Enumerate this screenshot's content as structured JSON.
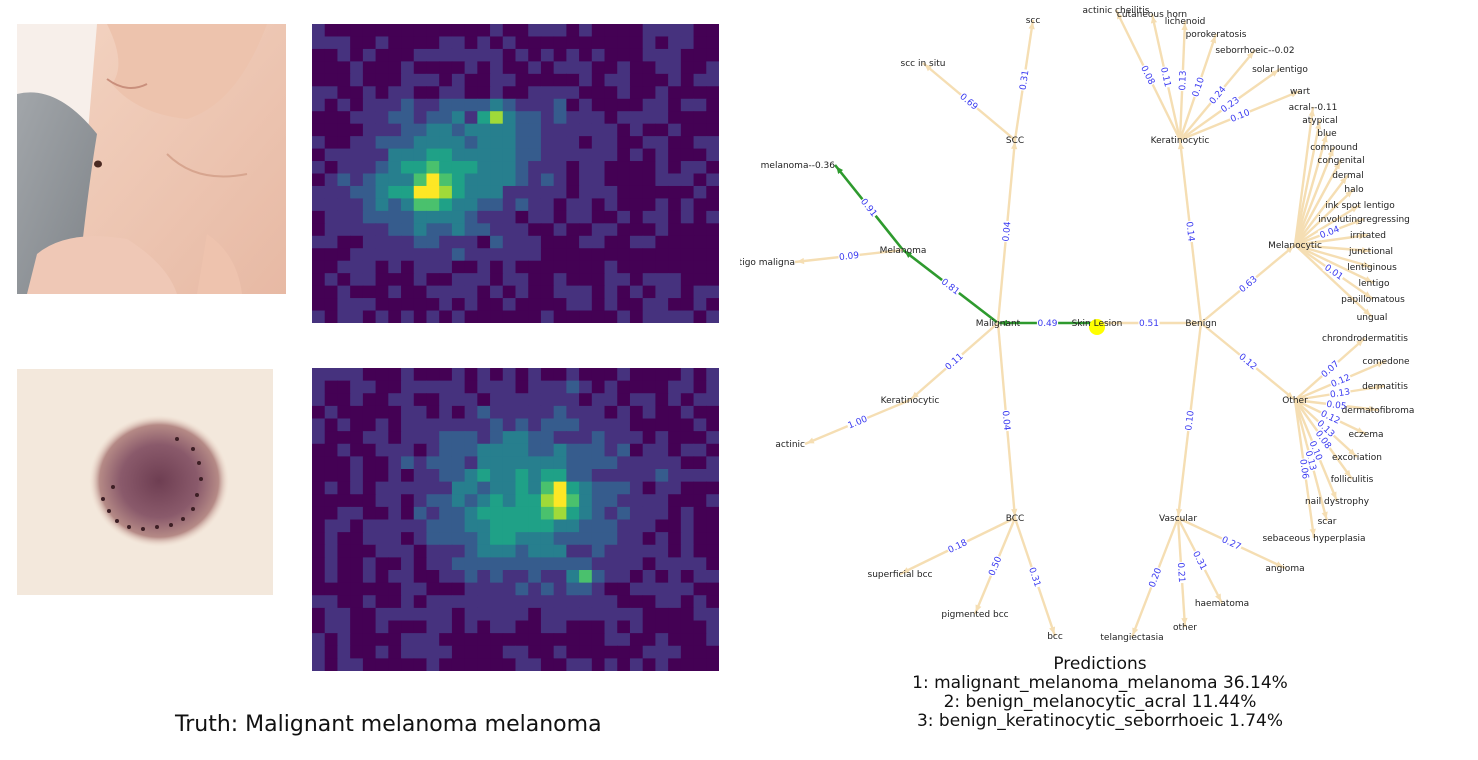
{
  "truth_label": "Truth: Malignant melanoma melanoma",
  "predictions": {
    "title": "Predictions",
    "items": [
      "1: malignant_melanoma_melanoma 36.14%",
      "2: benign_melanocytic_acral 11.44%",
      "3: benign_keratinocytic_seborrhoeic 1.74%"
    ]
  },
  "images": {
    "photo1": "photo-neck-mole",
    "photo2": "photo-dermoscopy-lesion",
    "heatmap_colormap": [
      "#440154",
      "#46327e",
      "#365c8d",
      "#277f8e",
      "#1fa187",
      "#4ac16d",
      "#a0da39",
      "#fde725"
    ]
  },
  "tree": {
    "colors": {
      "edge": "#f5deb3",
      "highlight": "#2e9a2e",
      "edge_label": "#3a3af0",
      "root_marker": "#ffff00"
    },
    "root": "Skin Lesion",
    "nodes": [
      {
        "id": "root",
        "label": "Skin Lesion"
      },
      {
        "id": "malignant",
        "label": "Malignant"
      },
      {
        "id": "benign",
        "label": "Benign"
      },
      {
        "id": "m_melanoma",
        "label": "Melanoma"
      },
      {
        "id": "m_scc",
        "label": "SCC"
      },
      {
        "id": "m_kerat",
        "label": "Keratinocytic"
      },
      {
        "id": "m_bcc",
        "label": "BCC"
      },
      {
        "id": "b_kerat",
        "label": "Keratinocytic"
      },
      {
        "id": "b_melano",
        "label": "Melanocytic"
      },
      {
        "id": "b_other",
        "label": "Other"
      },
      {
        "id": "b_vasc",
        "label": "Vascular"
      },
      {
        "id": "melanoma",
        "label": "melanoma--0.36"
      },
      {
        "id": "lentigo_maligna",
        "label": "lentigo maligna"
      },
      {
        "id": "scc",
        "label": "scc"
      },
      {
        "id": "scc_in_situ",
        "label": "scc in situ"
      },
      {
        "id": "actinic",
        "label": "actinic"
      },
      {
        "id": "sup_bcc",
        "label": "superficial bcc"
      },
      {
        "id": "pig_bcc",
        "label": "pigmented bcc"
      },
      {
        "id": "bcc",
        "label": "bcc"
      },
      {
        "id": "actinic_cheilitis",
        "label": "actinic cheilitis"
      },
      {
        "id": "cutaneous_horn",
        "label": "cutaneous horn"
      },
      {
        "id": "lichenoid",
        "label": "lichenoid"
      },
      {
        "id": "porokeratosis",
        "label": "porokeratosis"
      },
      {
        "id": "seborrhoeic",
        "label": "seborrhoeic--0.02"
      },
      {
        "id": "solar_lentigo",
        "label": "solar lentigo"
      },
      {
        "id": "wart",
        "label": "wart"
      },
      {
        "id": "acral",
        "label": "acral--0.11"
      },
      {
        "id": "atypical",
        "label": "atypical"
      },
      {
        "id": "blue",
        "label": "blue"
      },
      {
        "id": "compound",
        "label": "compound"
      },
      {
        "id": "congenital",
        "label": "congenital"
      },
      {
        "id": "dermal",
        "label": "dermal"
      },
      {
        "id": "halo",
        "label": "halo"
      },
      {
        "id": "ink_spot",
        "label": "ink spot lentigo"
      },
      {
        "id": "involuting",
        "label": "involutingregressing"
      },
      {
        "id": "irritated",
        "label": "irritated"
      },
      {
        "id": "junctional",
        "label": "junctional"
      },
      {
        "id": "lentiginous",
        "label": "lentiginous"
      },
      {
        "id": "lentigo",
        "label": "lentigo"
      },
      {
        "id": "papillomatous",
        "label": "papillomatous"
      },
      {
        "id": "ungual",
        "label": "ungual"
      },
      {
        "id": "chondro",
        "label": "chrondrodermatitis"
      },
      {
        "id": "comedone",
        "label": "comedone"
      },
      {
        "id": "dermatitis",
        "label": "dermatitis"
      },
      {
        "id": "dermatofibroma",
        "label": "dermatofibroma"
      },
      {
        "id": "eczema",
        "label": "eczema"
      },
      {
        "id": "excoriation",
        "label": "excoriation"
      },
      {
        "id": "folliculitis",
        "label": "folliculitis"
      },
      {
        "id": "nail_dystrophy",
        "label": "nail dystrophy"
      },
      {
        "id": "scar",
        "label": "scar"
      },
      {
        "id": "sebaceous",
        "label": "sebaceous hyperplasia"
      },
      {
        "id": "angioma",
        "label": "angioma"
      },
      {
        "id": "haematoma",
        "label": "haematoma"
      },
      {
        "id": "other_v",
        "label": "other"
      },
      {
        "id": "telangiectasia",
        "label": "telangiectasia"
      }
    ],
    "edges": [
      {
        "from": "root",
        "to": "malignant",
        "weight": "0.49",
        "highlight": true
      },
      {
        "from": "root",
        "to": "benign",
        "weight": "0.51"
      },
      {
        "from": "malignant",
        "to": "m_melanoma",
        "weight": "0.81",
        "highlight": true
      },
      {
        "from": "malignant",
        "to": "m_scc",
        "weight": "0.04"
      },
      {
        "from": "malignant",
        "to": "m_kerat",
        "weight": "0.11"
      },
      {
        "from": "malignant",
        "to": "m_bcc",
        "weight": "0.04"
      },
      {
        "from": "m_melanoma",
        "to": "melanoma",
        "weight": "0.91",
        "highlight": true
      },
      {
        "from": "m_melanoma",
        "to": "lentigo_maligna",
        "weight": "0.09"
      },
      {
        "from": "m_scc",
        "to": "scc",
        "weight": "0.31"
      },
      {
        "from": "m_scc",
        "to": "scc_in_situ",
        "weight": "0.69"
      },
      {
        "from": "m_kerat",
        "to": "actinic",
        "weight": "1.00"
      },
      {
        "from": "m_bcc",
        "to": "sup_bcc",
        "weight": "0.18"
      },
      {
        "from": "m_bcc",
        "to": "pig_bcc",
        "weight": "0.50"
      },
      {
        "from": "m_bcc",
        "to": "bcc",
        "weight": "0.31"
      },
      {
        "from": "benign",
        "to": "b_kerat",
        "weight": "0.14"
      },
      {
        "from": "benign",
        "to": "b_melano",
        "weight": "0.63"
      },
      {
        "from": "benign",
        "to": "b_other",
        "weight": "0.12"
      },
      {
        "from": "benign",
        "to": "b_vasc",
        "weight": "0.10"
      },
      {
        "from": "b_kerat",
        "to": "actinic_cheilitis",
        "weight": "0.08"
      },
      {
        "from": "b_kerat",
        "to": "cutaneous_horn",
        "weight": "0.11"
      },
      {
        "from": "b_kerat",
        "to": "lichenoid",
        "weight": "0.13"
      },
      {
        "from": "b_kerat",
        "to": "porokeratosis",
        "weight": "0.10"
      },
      {
        "from": "b_kerat",
        "to": "seborrhoeic",
        "weight": "0.24"
      },
      {
        "from": "b_kerat",
        "to": "solar_lentigo",
        "weight": "0.23"
      },
      {
        "from": "b_kerat",
        "to": "wart",
        "weight": "0.10"
      },
      {
        "from": "b_melano",
        "to": "acral",
        "weight": ""
      },
      {
        "from": "b_melano",
        "to": "atypical",
        "weight": ""
      },
      {
        "from": "b_melano",
        "to": "blue",
        "weight": ""
      },
      {
        "from": "b_melano",
        "to": "compound",
        "weight": ""
      },
      {
        "from": "b_melano",
        "to": "congenital",
        "weight": ""
      },
      {
        "from": "b_melano",
        "to": "dermal",
        "weight": ""
      },
      {
        "from": "b_melano",
        "to": "halo",
        "weight": ""
      },
      {
        "from": "b_melano",
        "to": "ink_spot",
        "weight": ""
      },
      {
        "from": "b_melano",
        "to": "involuting",
        "weight": "0.04"
      },
      {
        "from": "b_melano",
        "to": "irritated",
        "weight": ""
      },
      {
        "from": "b_melano",
        "to": "junctional",
        "weight": ""
      },
      {
        "from": "b_melano",
        "to": "lentiginous",
        "weight": ""
      },
      {
        "from": "b_melano",
        "to": "lentigo",
        "weight": ""
      },
      {
        "from": "b_melano",
        "to": "papillomatous",
        "weight": "0.01"
      },
      {
        "from": "b_melano",
        "to": "ungual",
        "weight": ""
      },
      {
        "from": "b_other",
        "to": "chondro",
        "weight": "0.07"
      },
      {
        "from": "b_other",
        "to": "comedone",
        "weight": "0.12"
      },
      {
        "from": "b_other",
        "to": "dermatitis",
        "weight": "0.13"
      },
      {
        "from": "b_other",
        "to": "dermatofibroma",
        "weight": "0.05"
      },
      {
        "from": "b_other",
        "to": "eczema",
        "weight": "0.12"
      },
      {
        "from": "b_other",
        "to": "excoriation",
        "weight": "0.13"
      },
      {
        "from": "b_other",
        "to": "folliculitis",
        "weight": "0.08"
      },
      {
        "from": "b_other",
        "to": "nail_dystrophy",
        "weight": "0.10"
      },
      {
        "from": "b_other",
        "to": "scar",
        "weight": "0.13"
      },
      {
        "from": "b_other",
        "to": "sebaceous",
        "weight": "0.06"
      },
      {
        "from": "b_vasc",
        "to": "angioma",
        "weight": "0.27"
      },
      {
        "from": "b_vasc",
        "to": "haematoma",
        "weight": "0.31"
      },
      {
        "from": "b_vasc",
        "to": "other_v",
        "weight": "0.21"
      },
      {
        "from": "b_vasc",
        "to": "telangiectasia",
        "weight": "0.20"
      }
    ]
  }
}
